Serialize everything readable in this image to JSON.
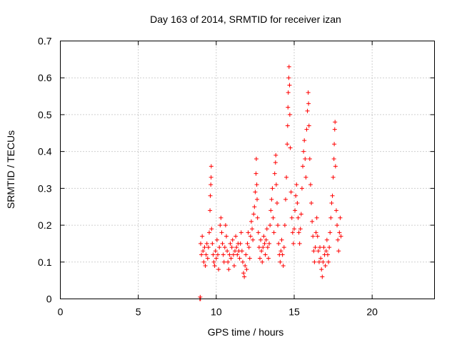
{
  "chart_data": {
    "type": "scatter",
    "title": "Day 163 of 2014, SRMTID for receiver izan",
    "xlabel": "GPS time / hours",
    "ylabel": "SRMTID / TECUs",
    "xlim": [
      0,
      24
    ],
    "ylim": [
      0,
      0.7
    ],
    "xticks": [
      0,
      5,
      10,
      15,
      20
    ],
    "xtick_labels": [
      "0",
      "5",
      "10",
      "15",
      "20"
    ],
    "yticks": [
      0,
      0.1,
      0.2,
      0.3,
      0.4,
      0.5,
      0.6,
      0.7
    ],
    "ytick_labels": [
      "0",
      "0.1",
      "0.2",
      "0.3",
      "0.4",
      "0.5",
      "0.6",
      "0.7"
    ],
    "grid": true,
    "marker": "+",
    "color": "#ff0000",
    "series": [
      {
        "name": "SRMTID",
        "points": [
          [
            8.95,
            0.0
          ],
          [
            8.97,
            0.005
          ],
          [
            8.99,
            0.0
          ],
          [
            9.0,
            0.15
          ],
          [
            9.05,
            0.12
          ],
          [
            9.1,
            0.17
          ],
          [
            9.15,
            0.13
          ],
          [
            9.2,
            0.1
          ],
          [
            9.25,
            0.14
          ],
          [
            9.3,
            0.09
          ],
          [
            9.35,
            0.12
          ],
          [
            9.4,
            0.15
          ],
          [
            9.45,
            0.11
          ],
          [
            9.5,
            0.14
          ],
          [
            9.55,
            0.18
          ],
          [
            9.6,
            0.24
          ],
          [
            9.62,
            0.28
          ],
          [
            9.65,
            0.31
          ],
          [
            9.67,
            0.33
          ],
          [
            9.68,
            0.36
          ],
          [
            9.7,
            0.19
          ],
          [
            9.75,
            0.15
          ],
          [
            9.8,
            0.12
          ],
          [
            9.85,
            0.1
          ],
          [
            9.9,
            0.09
          ],
          [
            9.95,
            0.13
          ],
          [
            10.0,
            0.11
          ],
          [
            10.05,
            0.16
          ],
          [
            10.1,
            0.12
          ],
          [
            10.15,
            0.08
          ],
          [
            10.2,
            0.14
          ],
          [
            10.25,
            0.2
          ],
          [
            10.3,
            0.22
          ],
          [
            10.35,
            0.18
          ],
          [
            10.4,
            0.15
          ],
          [
            10.45,
            0.12
          ],
          [
            10.5,
            0.1
          ],
          [
            10.55,
            0.14
          ],
          [
            10.6,
            0.2
          ],
          [
            10.65,
            0.17
          ],
          [
            10.7,
            0.13
          ],
          [
            10.75,
            0.1
          ],
          [
            10.8,
            0.08
          ],
          [
            10.85,
            0.12
          ],
          [
            10.9,
            0.15
          ],
          [
            10.95,
            0.11
          ],
          [
            11.0,
            0.14
          ],
          [
            11.05,
            0.16
          ],
          [
            11.1,
            0.12
          ],
          [
            11.15,
            0.09
          ],
          [
            11.2,
            0.13
          ],
          [
            11.25,
            0.17
          ],
          [
            11.3,
            0.14
          ],
          [
            11.35,
            0.12
          ],
          [
            11.4,
            0.15
          ],
          [
            11.45,
            0.13
          ],
          [
            11.5,
            0.11
          ],
          [
            11.55,
            0.15
          ],
          [
            11.6,
            0.18
          ],
          [
            11.65,
            0.13
          ],
          [
            11.7,
            0.1
          ],
          [
            11.75,
            0.07
          ],
          [
            11.8,
            0.06
          ],
          [
            11.85,
            0.09
          ],
          [
            11.9,
            0.12
          ],
          [
            11.95,
            0.08
          ],
          [
            12.0,
            0.15
          ],
          [
            12.05,
            0.18
          ],
          [
            12.1,
            0.14
          ],
          [
            12.15,
            0.11
          ],
          [
            12.2,
            0.17
          ],
          [
            12.25,
            0.21
          ],
          [
            12.3,
            0.19
          ],
          [
            12.35,
            0.16
          ],
          [
            12.4,
            0.23
          ],
          [
            12.45,
            0.25
          ],
          [
            12.5,
            0.29
          ],
          [
            12.55,
            0.34
          ],
          [
            12.57,
            0.38
          ],
          [
            12.6,
            0.31
          ],
          [
            12.62,
            0.27
          ],
          [
            12.65,
            0.22
          ],
          [
            12.7,
            0.18
          ],
          [
            12.75,
            0.14
          ],
          [
            12.8,
            0.11
          ],
          [
            12.85,
            0.16
          ],
          [
            12.9,
            0.13
          ],
          [
            12.95,
            0.1
          ],
          [
            13.0,
            0.14
          ],
          [
            13.05,
            0.17
          ],
          [
            13.1,
            0.15
          ],
          [
            13.15,
            0.12
          ],
          [
            13.2,
            0.16
          ],
          [
            13.25,
            0.19
          ],
          [
            13.3,
            0.14
          ],
          [
            13.35,
            0.11
          ],
          [
            13.4,
            0.15
          ],
          [
            13.45,
            0.2
          ],
          [
            13.5,
            0.24
          ],
          [
            13.55,
            0.27
          ],
          [
            13.6,
            0.3
          ],
          [
            13.65,
            0.22
          ],
          [
            13.7,
            0.18
          ],
          [
            13.75,
            0.34
          ],
          [
            13.8,
            0.37
          ],
          [
            13.82,
            0.39
          ],
          [
            13.85,
            0.31
          ],
          [
            13.9,
            0.26
          ],
          [
            13.95,
            0.2
          ],
          [
            14.0,
            0.15
          ],
          [
            14.05,
            0.12
          ],
          [
            14.1,
            0.1
          ],
          [
            14.15,
            0.13
          ],
          [
            14.2,
            0.16
          ],
          [
            14.25,
            0.12
          ],
          [
            14.3,
            0.09
          ],
          [
            14.35,
            0.14
          ],
          [
            14.4,
            0.2
          ],
          [
            14.45,
            0.27
          ],
          [
            14.5,
            0.33
          ],
          [
            14.55,
            0.42
          ],
          [
            14.58,
            0.47
          ],
          [
            14.6,
            0.52
          ],
          [
            14.62,
            0.56
          ],
          [
            14.65,
            0.6
          ],
          [
            14.67,
            0.63
          ],
          [
            14.7,
            0.58
          ],
          [
            14.72,
            0.5
          ],
          [
            14.75,
            0.41
          ],
          [
            14.8,
            0.29
          ],
          [
            14.85,
            0.22
          ],
          [
            14.9,
            0.18
          ],
          [
            14.95,
            0.15
          ],
          [
            15.0,
            0.19
          ],
          [
            15.05,
            0.24
          ],
          [
            15.1,
            0.28
          ],
          [
            15.15,
            0.31
          ],
          [
            15.2,
            0.26
          ],
          [
            15.25,
            0.22
          ],
          [
            15.3,
            0.18
          ],
          [
            15.35,
            0.15
          ],
          [
            15.4,
            0.19
          ],
          [
            15.45,
            0.23
          ],
          [
            15.5,
            0.3
          ],
          [
            15.55,
            0.36
          ],
          [
            15.6,
            0.4
          ],
          [
            15.65,
            0.43
          ],
          [
            15.7,
            0.38
          ],
          [
            15.75,
            0.33
          ],
          [
            15.8,
            0.46
          ],
          [
            15.85,
            0.51
          ],
          [
            15.9,
            0.56
          ],
          [
            15.92,
            0.53
          ],
          [
            15.95,
            0.47
          ],
          [
            16.0,
            0.38
          ],
          [
            16.05,
            0.31
          ],
          [
            16.1,
            0.26
          ],
          [
            16.15,
            0.21
          ],
          [
            16.2,
            0.17
          ],
          [
            16.25,
            0.13
          ],
          [
            16.3,
            0.1
          ],
          [
            16.35,
            0.14
          ],
          [
            16.4,
            0.18
          ],
          [
            16.45,
            0.22
          ],
          [
            16.5,
            0.17
          ],
          [
            16.55,
            0.13
          ],
          [
            16.6,
            0.1
          ],
          [
            16.65,
            0.14
          ],
          [
            16.7,
            0.11
          ],
          [
            16.75,
            0.08
          ],
          [
            16.8,
            0.06
          ],
          [
            16.85,
            0.1
          ],
          [
            16.9,
            0.14
          ],
          [
            16.95,
            0.12
          ],
          [
            17.0,
            0.09
          ],
          [
            17.05,
            0.13
          ],
          [
            17.1,
            0.16
          ],
          [
            17.15,
            0.12
          ],
          [
            17.2,
            0.1
          ],
          [
            17.25,
            0.14
          ],
          [
            17.3,
            0.18
          ],
          [
            17.35,
            0.22
          ],
          [
            17.4,
            0.26
          ],
          [
            17.45,
            0.28
          ],
          [
            17.5,
            0.33
          ],
          [
            17.55,
            0.38
          ],
          [
            17.57,
            0.42
          ],
          [
            17.6,
            0.46
          ],
          [
            17.62,
            0.48
          ],
          [
            17.65,
            0.36
          ],
          [
            17.7,
            0.24
          ],
          [
            17.75,
            0.2
          ],
          [
            17.8,
            0.16
          ],
          [
            17.85,
            0.13
          ],
          [
            17.9,
            0.18
          ],
          [
            17.95,
            0.22
          ],
          [
            18.0,
            0.17
          ]
        ]
      }
    ]
  }
}
